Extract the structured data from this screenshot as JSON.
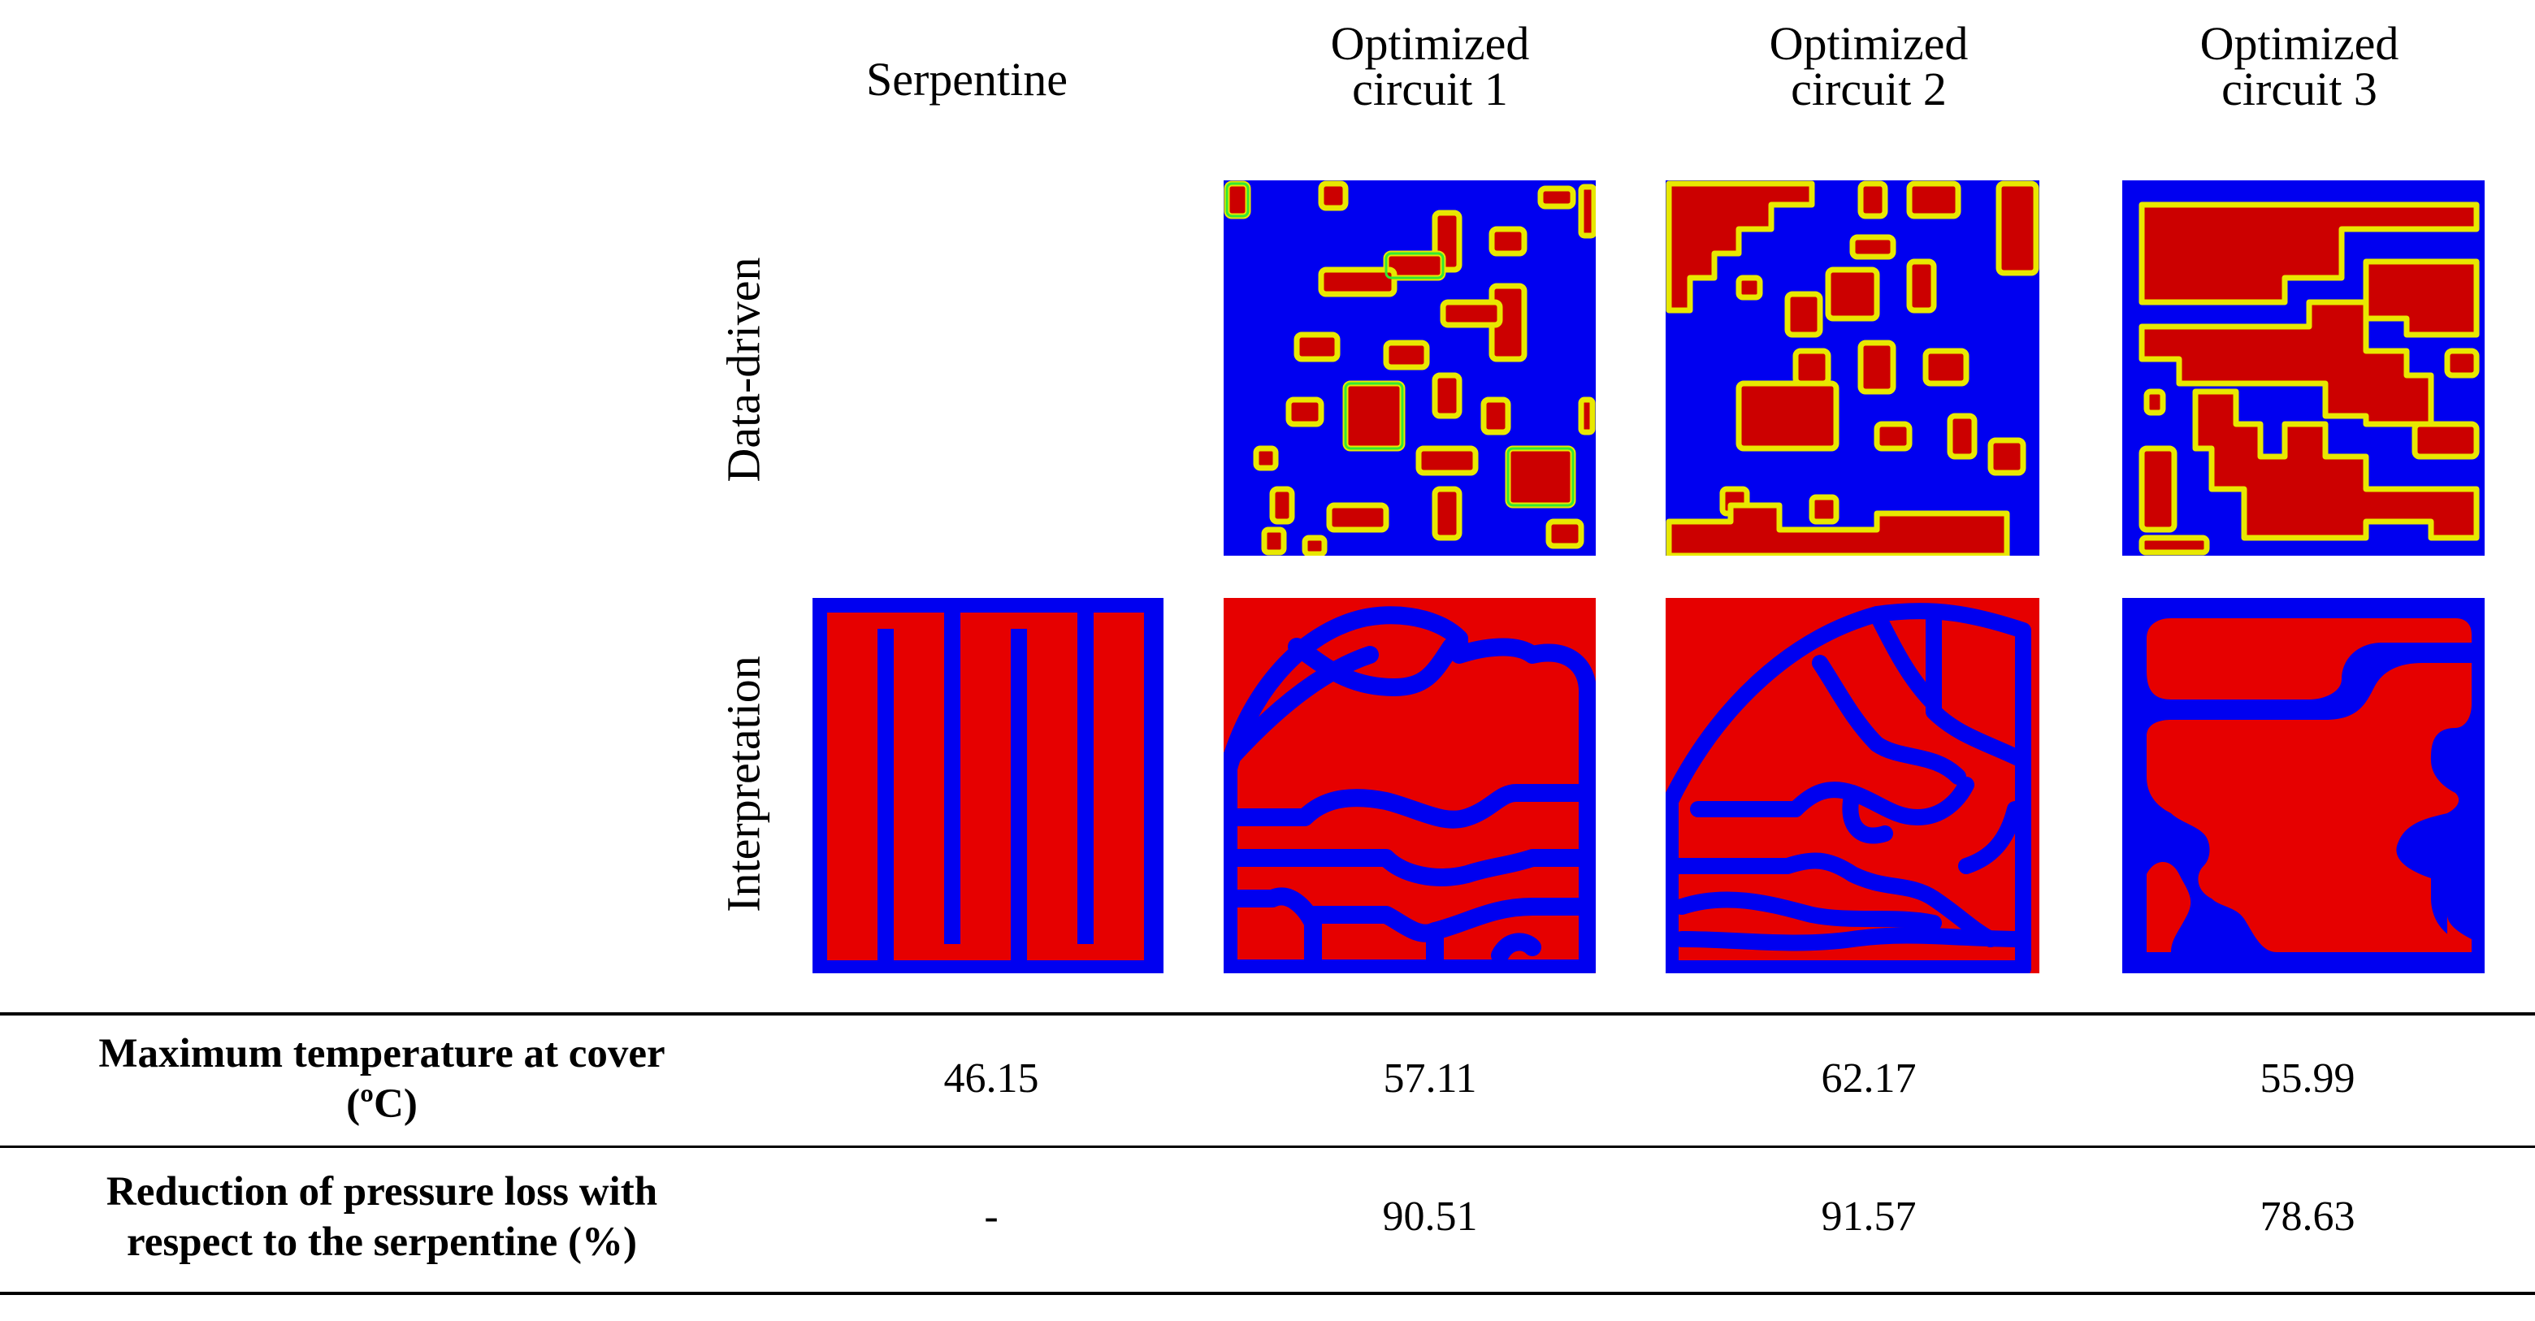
{
  "columns": {
    "c0": "Serpentine",
    "c1_line1": "Optimized",
    "c1_line2": "circuit  1",
    "c2_line1": "Optimized",
    "c2_line2": "circuit  2",
    "c3_line1": "Optimized",
    "c3_line2": "circuit  3"
  },
  "rows": {
    "data_driven": "Data-driven",
    "interpretation": "Interpretation"
  },
  "table": {
    "max_temp_label_1": "Maximum temperature at cover",
    "max_temp_label_2": "(ºC)",
    "max_temp_values": [
      "46.15",
      "57.11",
      "62.17",
      "55.99"
    ],
    "pressure_label_1": "Reduction of pressure loss  with",
    "pressure_label_2": "respect to the serpentine (%)",
    "pressure_values": [
      "-",
      "90.51",
      "91.57",
      "78.63"
    ]
  },
  "colors": {
    "red": "#e60000",
    "dark_red": "#cc0000",
    "blue": "#0000f0",
    "green": "#33e833",
    "yellow": "#e8e800"
  }
}
